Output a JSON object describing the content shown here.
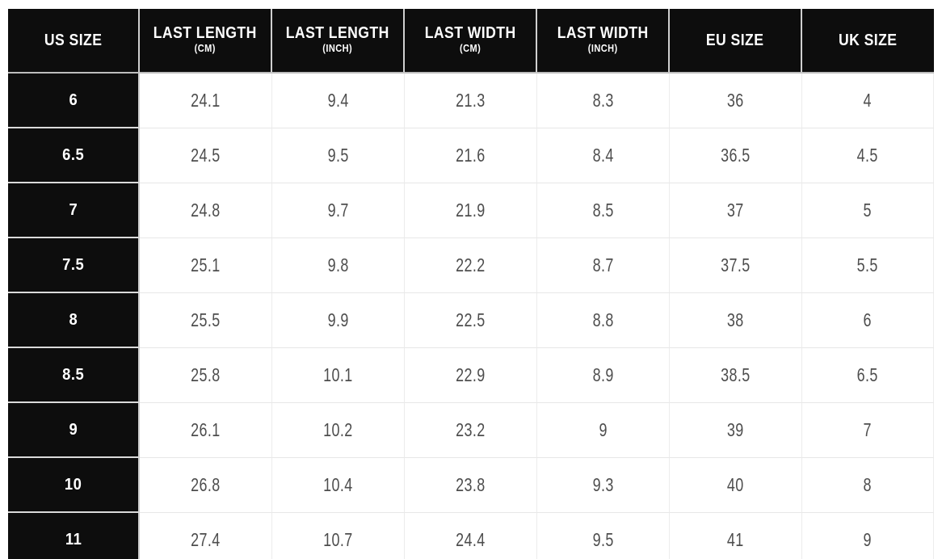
{
  "table": {
    "name": "shoe-size-conversion-chart",
    "columns": [
      {
        "label": "US SIZE",
        "sub": ""
      },
      {
        "label": "LAST LENGTH",
        "sub": "(CM)"
      },
      {
        "label": "LAST LENGTH",
        "sub": "(INCH)"
      },
      {
        "label": "LAST WIDTH",
        "sub": "(CM)"
      },
      {
        "label": "LAST WIDTH",
        "sub": "(INCH)"
      },
      {
        "label": "EU SIZE",
        "sub": ""
      },
      {
        "label": "UK SIZE",
        "sub": ""
      }
    ],
    "rows": [
      {
        "us_size": "6",
        "values": [
          "24.1",
          "9.4",
          "21.3",
          "8.3",
          "36",
          "4"
        ]
      },
      {
        "us_size": "6.5",
        "values": [
          "24.5",
          "9.5",
          "21.6",
          "8.4",
          "36.5",
          "4.5"
        ]
      },
      {
        "us_size": "7",
        "values": [
          "24.8",
          "9.7",
          "21.9",
          "8.5",
          "37",
          "5"
        ]
      },
      {
        "us_size": "7.5",
        "values": [
          "25.1",
          "9.8",
          "22.2",
          "8.7",
          "37.5",
          "5.5"
        ]
      },
      {
        "us_size": "8",
        "values": [
          "25.5",
          "9.9",
          "22.5",
          "8.8",
          "38",
          "6"
        ]
      },
      {
        "us_size": "8.5",
        "values": [
          "25.8",
          "10.1",
          "22.9",
          "8.9",
          "38.5",
          "6.5"
        ]
      },
      {
        "us_size": "9",
        "values": [
          "26.1",
          "10.2",
          "23.2",
          "9",
          "39",
          "7"
        ]
      },
      {
        "us_size": "10",
        "values": [
          "26.8",
          "10.4",
          "23.8",
          "9.3",
          "40",
          "8"
        ]
      },
      {
        "us_size": "11",
        "values": [
          "27.4",
          "10.7",
          "24.4",
          "9.5",
          "41",
          "9"
        ]
      }
    ]
  },
  "colors": {
    "header_bg": "#0d0d0d",
    "header_text": "#ffffff",
    "value_text": "#4d4d4d",
    "grid_line": "#e7e7e7",
    "header_divider": "#bdbdbd",
    "page_bg": "#ffffff"
  }
}
